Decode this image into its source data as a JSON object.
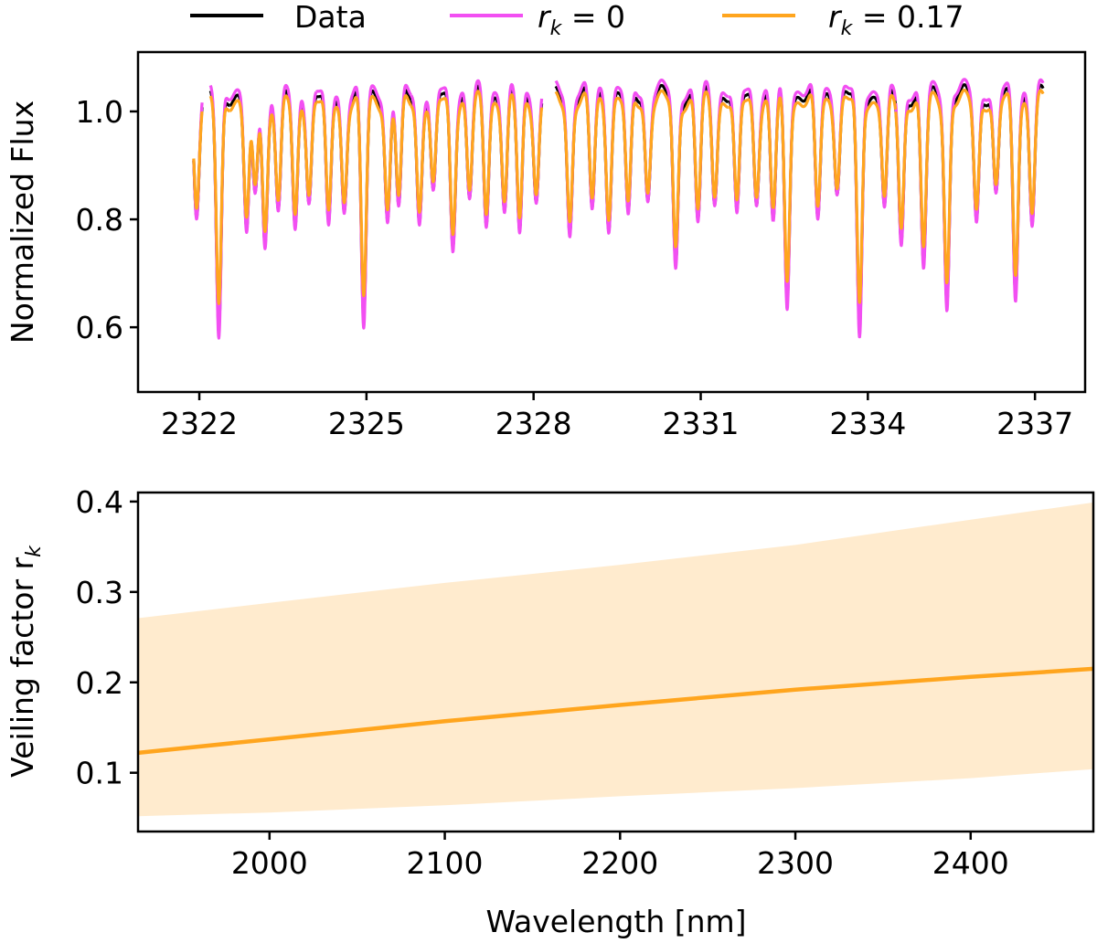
{
  "legend": {
    "data_label": "Data",
    "rk0_label": "r_k = 0",
    "rk017_label": "r_k = 0.17",
    "colors": {
      "data": "#000000",
      "rk0": "#f24ff2",
      "rk017": "#ffa51e"
    }
  },
  "chart_data": [
    {
      "type": "line",
      "ylabel": "Normalized Flux",
      "xlabel": "",
      "xlim": [
        2320.9,
        2337.9
      ],
      "ylim": [
        0.48,
        1.11
      ],
      "xticks": [
        "2322",
        "2325",
        "2328",
        "2331",
        "2334",
        "2337"
      ],
      "yticks": [
        "0.6",
        "0.8",
        "1.0"
      ],
      "segments": [
        [
          2321.9,
          2322.05
        ],
        [
          2322.2,
          2322.55
        ],
        [
          2322.55,
          2324.1
        ],
        [
          2324.1,
          2325.8
        ],
        [
          2325.8,
          2328.15
        ],
        [
          2328.4,
          2330.65
        ],
        [
          2330.65,
          2331.5
        ],
        [
          2331.5,
          2332.3
        ],
        [
          2332.3,
          2334.5
        ],
        [
          2334.5,
          2337.15
        ]
      ],
      "absorption_lines": [
        {
          "x": 2321.95,
          "depth": 0.2
        },
        {
          "x": 2322.35,
          "depth": 0.42
        },
        {
          "x": 2322.85,
          "depth": 0.24
        },
        {
          "x": 2323.0,
          "depth": 0.18
        },
        {
          "x": 2323.18,
          "depth": 0.26
        },
        {
          "x": 2323.42,
          "depth": 0.2
        },
        {
          "x": 2323.72,
          "depth": 0.24
        },
        {
          "x": 2323.97,
          "depth": 0.18
        },
        {
          "x": 2324.32,
          "depth": 0.24
        },
        {
          "x": 2324.6,
          "depth": 0.2
        },
        {
          "x": 2324.95,
          "depth": 0.4
        },
        {
          "x": 2325.38,
          "depth": 0.22
        },
        {
          "x": 2325.58,
          "depth": 0.2
        },
        {
          "x": 2325.95,
          "depth": 0.22
        },
        {
          "x": 2326.2,
          "depth": 0.18
        },
        {
          "x": 2326.55,
          "depth": 0.26
        },
        {
          "x": 2326.85,
          "depth": 0.18
        },
        {
          "x": 2327.15,
          "depth": 0.22
        },
        {
          "x": 2327.48,
          "depth": 0.2
        },
        {
          "x": 2327.75,
          "depth": 0.24
        },
        {
          "x": 2328.05,
          "depth": 0.18
        },
        {
          "x": 2328.65,
          "depth": 0.24
        },
        {
          "x": 2329.05,
          "depth": 0.2
        },
        {
          "x": 2329.35,
          "depth": 0.22
        },
        {
          "x": 2329.7,
          "depth": 0.22
        },
        {
          "x": 2330.05,
          "depth": 0.18
        },
        {
          "x": 2330.55,
          "depth": 0.3
        },
        {
          "x": 2330.95,
          "depth": 0.22
        },
        {
          "x": 2331.25,
          "depth": 0.18
        },
        {
          "x": 2331.65,
          "depth": 0.22
        },
        {
          "x": 2332.0,
          "depth": 0.18
        },
        {
          "x": 2332.3,
          "depth": 0.22
        },
        {
          "x": 2332.55,
          "depth": 0.36
        },
        {
          "x": 2333.1,
          "depth": 0.22
        },
        {
          "x": 2333.45,
          "depth": 0.16
        },
        {
          "x": 2333.85,
          "depth": 0.42
        },
        {
          "x": 2334.3,
          "depth": 0.2
        },
        {
          "x": 2334.6,
          "depth": 0.26
        },
        {
          "x": 2335.0,
          "depth": 0.3
        },
        {
          "x": 2335.42,
          "depth": 0.36
        },
        {
          "x": 2335.95,
          "depth": 0.22
        },
        {
          "x": 2336.3,
          "depth": 0.18
        },
        {
          "x": 2336.65,
          "depth": 0.34
        },
        {
          "x": 2336.95,
          "depth": 0.22
        }
      ],
      "series": [
        {
          "name": "Data",
          "color": "#000000",
          "line_depth_scale": 1.05,
          "continuum": 1.03
        },
        {
          "name": "r_k = 0",
          "color": "#f24ff2",
          "line_depth_scale": 1.12,
          "continuum": 1.04
        },
        {
          "name": "r_k = 0.17",
          "color": "#ffa51e",
          "line_depth_scale": 0.92,
          "continuum": 1.02
        }
      ]
    },
    {
      "type": "area",
      "xlabel": "Wavelength [nm]",
      "ylabel": "Veiling factor r_k",
      "xlim": [
        1925,
        2470
      ],
      "ylim": [
        0.035,
        0.41
      ],
      "xticks": [
        "2000",
        "2100",
        "2200",
        "2300",
        "2400"
      ],
      "yticks": [
        "0.1",
        "0.2",
        "0.3",
        "0.4"
      ],
      "band": {
        "x": [
          1925,
          2000,
          2100,
          2200,
          2300,
          2400,
          2470
        ],
        "upper": [
          0.271,
          0.288,
          0.31,
          0.33,
          0.352,
          0.38,
          0.399
        ],
        "lower": [
          0.052,
          0.056,
          0.064,
          0.074,
          0.083,
          0.094,
          0.104
        ],
        "color": "#ffa51e",
        "opacity": 0.22
      },
      "series": [
        {
          "name": "r_k",
          "color": "#ffa51e",
          "x": [
            1925,
            2000,
            2100,
            2200,
            2300,
            2400,
            2470
          ],
          "values": [
            0.122,
            0.137,
            0.157,
            0.175,
            0.192,
            0.206,
            0.215
          ]
        }
      ]
    }
  ]
}
